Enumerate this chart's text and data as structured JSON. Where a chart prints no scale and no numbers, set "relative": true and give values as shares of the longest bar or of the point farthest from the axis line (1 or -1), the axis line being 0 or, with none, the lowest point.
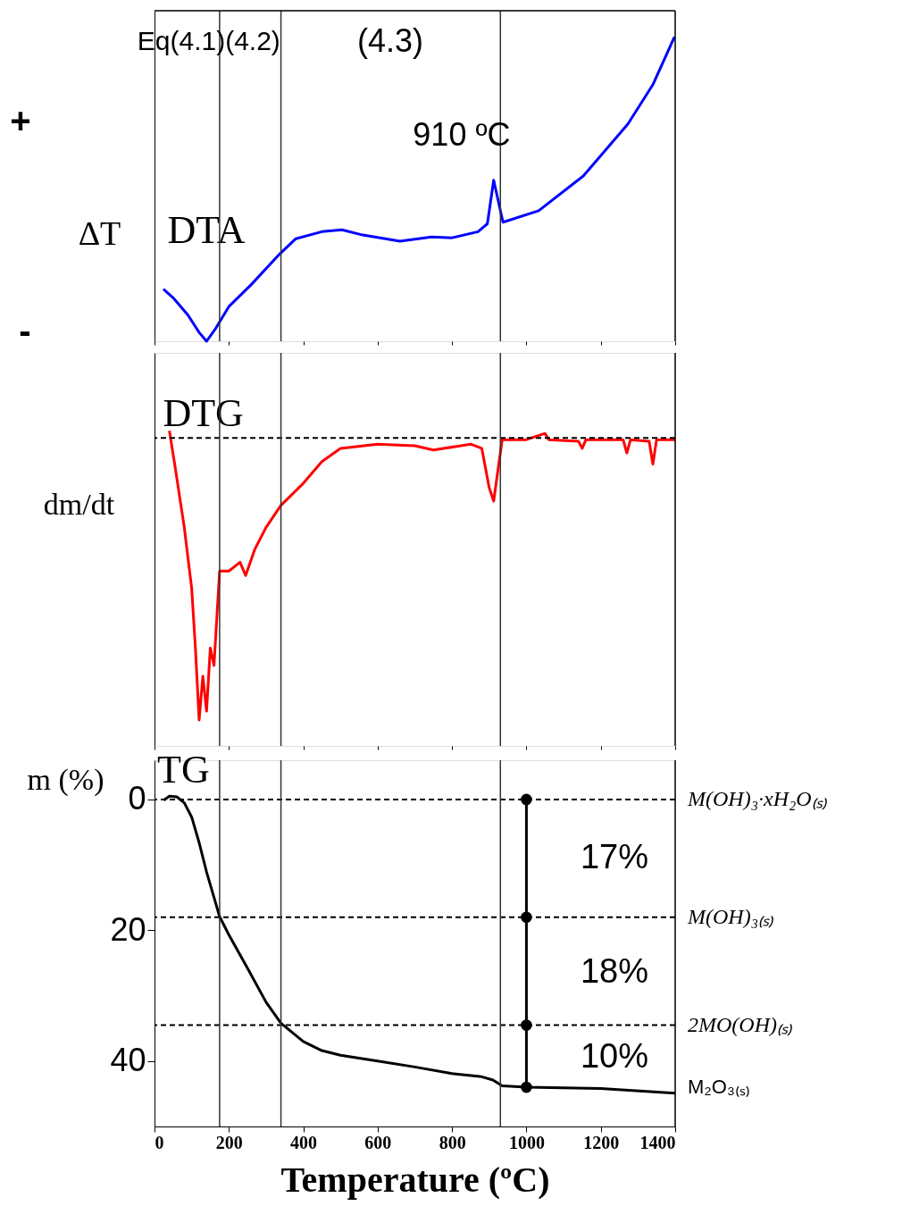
{
  "chart_data": [
    {
      "type": "line",
      "relative": true,
      "ylabel": "ΔT",
      "xlim": [
        0,
        1400
      ],
      "xticks": [
        0,
        200,
        400,
        600,
        800,
        1000,
        1200,
        1400
      ],
      "tick_labels": false,
      "series": [
        {
          "name": "DTA",
          "color": "#0000ff",
          "x": [
            24,
            50,
            90,
            120,
            140,
            165,
            200,
            260,
            336,
            380,
            450,
            504,
            560,
            660,
            745,
            800,
            870,
            895,
            912,
            925,
            937,
            1033,
            1153,
            1273,
            1340,
            1398
          ],
          "values": [
            0.171,
            0.143,
            0.086,
            0.029,
            0,
            0.043,
            0.114,
            0.186,
            0.286,
            0.337,
            0.36,
            0.366,
            0.349,
            0.329,
            0.343,
            0.34,
            0.36,
            0.386,
            0.529,
            0.457,
            0.391,
            0.429,
            0.543,
            0.714,
            0.843,
            1
          ]
        }
      ],
      "ref_lines": [
        {
          "axis": "x",
          "value": 175,
          "color": "#333333",
          "line_style": "solid"
        },
        {
          "axis": "x",
          "value": 340,
          "color": "#333333",
          "line_style": "solid"
        },
        {
          "axis": "x",
          "value": 930,
          "color": "#333333",
          "line_style": "solid"
        }
      ],
      "annotations": [
        "+",
        "-",
        "Eq(4.1)",
        "(4.2)",
        "(4.3)",
        {
          "text": "910 ºC",
          "x": 910,
          "y": 0.529
        }
      ]
    },
    {
      "type": "line",
      "relative": true,
      "ylabel": "dm/dt",
      "xlim": [
        0,
        1400
      ],
      "xticks": [
        0,
        200,
        400,
        600,
        800,
        1000,
        1200,
        1400
      ],
      "tick_labels": false,
      "series": [
        {
          "name": "DTG",
          "color": "#ff0000",
          "x": [
            40,
            55,
            80,
            100,
            110,
            120,
            130,
            140,
            150,
            160,
            175,
            200,
            230,
            245,
            270,
            300,
            340,
            400,
            450,
            500,
            600,
            700,
            750,
            850,
            880,
            900,
            912,
            925,
            935,
            1000,
            1050,
            1060,
            1140,
            1150,
            1160,
            1260,
            1270,
            1280,
            1330,
            1340,
            1350,
            1400
          ],
          "values": [
            0.025,
            -0.099,
            -0.317,
            -0.534,
            -0.745,
            -1,
            -0.845,
            -0.969,
            -0.745,
            -0.807,
            -0.472,
            -0.472,
            -0.441,
            -0.488,
            -0.394,
            -0.317,
            -0.239,
            -0.161,
            -0.084,
            -0.037,
            -0.022,
            -0.028,
            -0.043,
            -0.022,
            -0.037,
            -0.177,
            -0.224,
            -0.099,
            -0.006,
            -0.006,
            0.016,
            -0.006,
            -0.012,
            -0.037,
            -0.006,
            -0.006,
            -0.053,
            -0.006,
            -0.012,
            -0.093,
            -0.006,
            -0.006
          ]
        }
      ],
      "ref_lines": [
        {
          "axis": "y",
          "value": 0,
          "color": "#000000",
          "line_style": "dashed"
        },
        {
          "axis": "x",
          "value": 175,
          "color": "#333333",
          "line_style": "solid"
        },
        {
          "axis": "x",
          "value": 340,
          "color": "#333333",
          "line_style": "solid"
        },
        {
          "axis": "x",
          "value": 930,
          "color": "#333333",
          "line_style": "solid"
        }
      ]
    },
    {
      "type": "line",
      "xlabel": "Temperature (ºC)",
      "ylabel": "m (%)",
      "xlim": [
        0,
        1400
      ],
      "xticks": [
        0,
        200,
        400,
        600,
        800,
        1000,
        1200,
        1400
      ],
      "ylim": [
        50,
        -6
      ],
      "yticks": [
        0,
        20,
        40
      ],
      "series": [
        {
          "name": "TG",
          "color": "#000000",
          "x": [
            25,
            40,
            60,
            80,
            100,
            120,
            140,
            175,
            200,
            250,
            300,
            340,
            400,
            450,
            500,
            600,
            700,
            800,
            880,
            910,
            935,
            1000,
            1200,
            1400
          ],
          "values": [
            0.1,
            -0.5,
            -0.4,
            0.5,
            2.7,
            6.6,
            11.1,
            17.9,
            20.7,
            25.8,
            31.0,
            34.2,
            37.0,
            38.4,
            39.1,
            40.0,
            40.9,
            41.9,
            42.4,
            42.9,
            43.8,
            44.0,
            44.2,
            44.9
          ]
        },
        {
          "type": "line",
          "marker": "circle",
          "color": "#000000",
          "x": [
            1000,
            1000,
            1000,
            1000
          ],
          "values": [
            0,
            18,
            34.5,
            44.0
          ]
        }
      ],
      "ref_lines": [
        {
          "axis": "y",
          "value": 0,
          "label": "M(OH)₃·xH₂O₍ₛ₎",
          "color": "#000000",
          "line_style": "dashed"
        },
        {
          "axis": "y",
          "value": 18,
          "label": "M(OH)₃₍ₛ₎",
          "color": "#000000",
          "line_style": "dashed"
        },
        {
          "axis": "y",
          "value": 34.5,
          "label": "2MO(OH)₍ₛ₎",
          "color": "#000000",
          "line_style": "dashed"
        },
        {
          "axis": "x",
          "value": 175,
          "color": "#333333",
          "line_style": "solid"
        },
        {
          "axis": "x",
          "value": 340,
          "color": "#333333",
          "line_style": "solid"
        },
        {
          "axis": "x",
          "value": 930,
          "color": "#333333",
          "line_style": "solid"
        }
      ],
      "annotations": [
        "17%",
        "18%",
        "10%",
        {
          "text": "M₂O₃₍ₛ₎",
          "x": 1400,
          "y": 44
        }
      ]
    }
  ]
}
